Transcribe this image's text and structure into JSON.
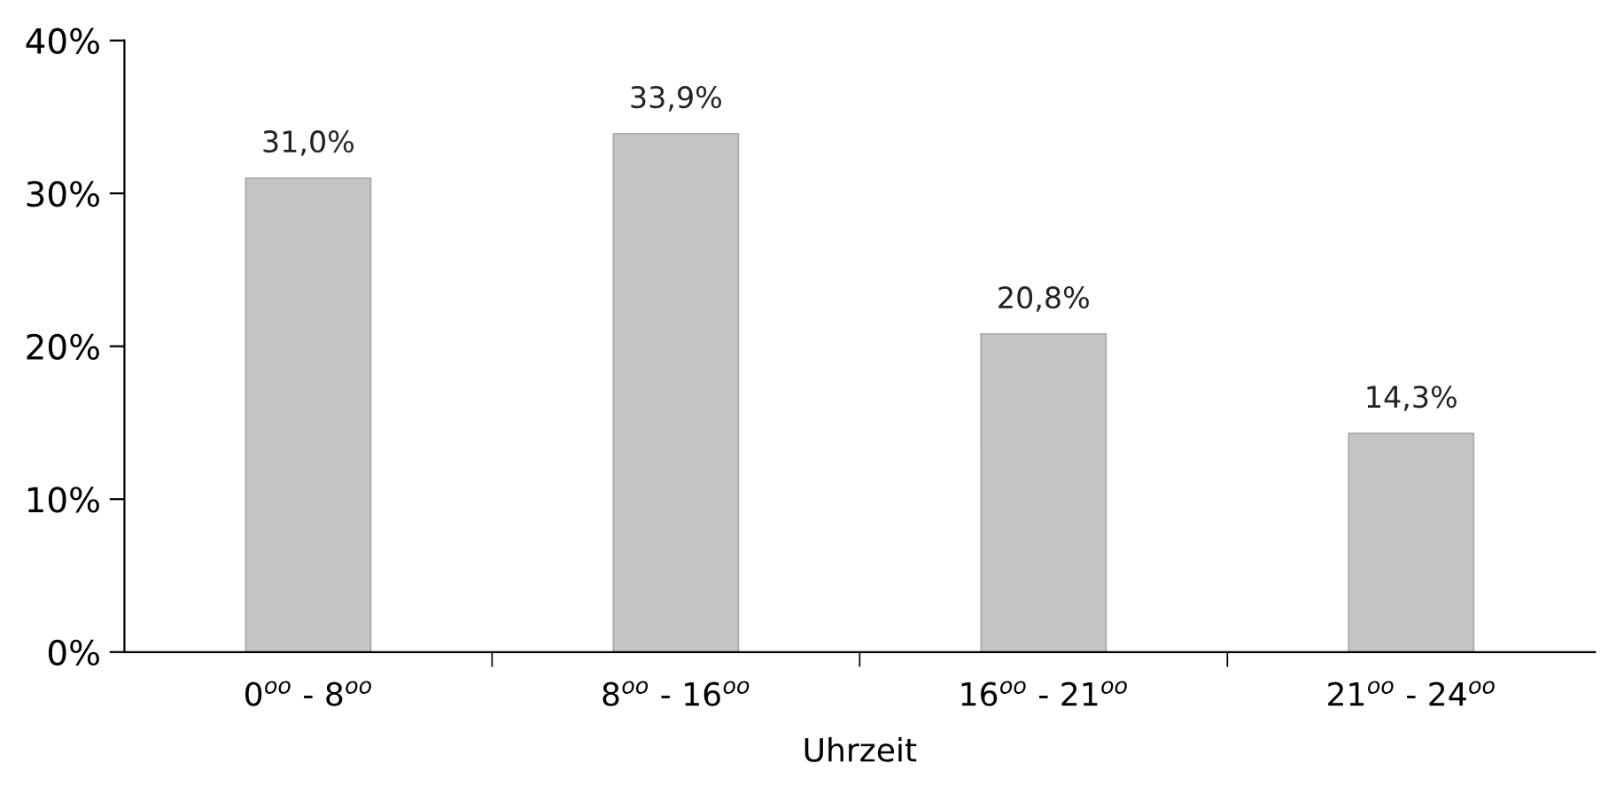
{
  "chart_data": {
    "type": "bar",
    "categories": [
      "0$^{oo}$ - 8$^{oo}$",
      "8$^{oo}$ - 16$^{oo}$",
      "16$^{oo}$ - 21$^{oo}$",
      "21$^{oo}$ - 24$^{oo}$"
    ],
    "values": [
      31.0,
      33.9,
      20.8,
      14.3
    ],
    "value_labels": [
      "31,0%",
      "33,9%",
      "20,8%",
      "14,3%"
    ],
    "color": "#c4c4c4",
    "xlabel": "Uhrzeit",
    "ylim": [
      0,
      40
    ],
    "yticks": [
      {
        "value": 0,
        "label": "0%"
      },
      {
        "value": 10,
        "label": "10%"
      },
      {
        "value": 20,
        "label": "20%"
      },
      {
        "value": 30,
        "label": "30%"
      },
      {
        "value": 40,
        "label": "40%"
      }
    ],
    "grid": false,
    "legend": false
  }
}
